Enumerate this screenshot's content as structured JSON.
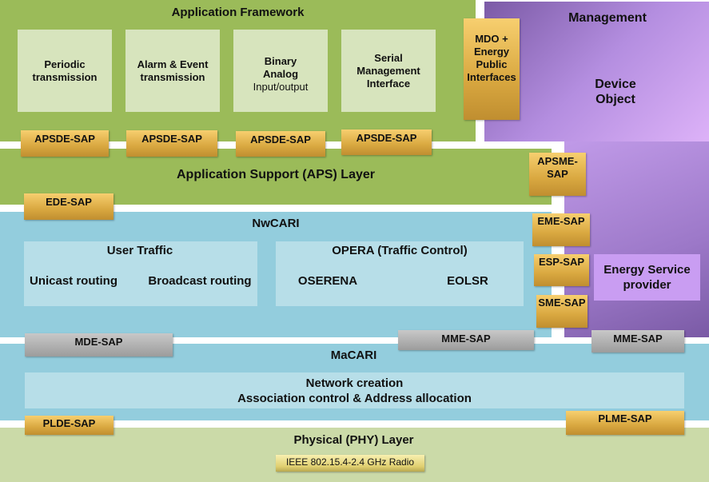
{
  "app_framework": {
    "title": "Application Framework",
    "modules": [
      {
        "lines": [
          "Periodic",
          "transmission"
        ]
      },
      {
        "lines": [
          "Alarm & Event",
          "transmission"
        ]
      },
      {
        "lines": [
          "Binary",
          "Analog"
        ],
        "sub": "Input/output"
      },
      {
        "lines": [
          "Serial",
          "Management",
          "Interface"
        ]
      }
    ],
    "sap": "APSDE-SAP"
  },
  "mdo": [
    "MDO +",
    "Energy",
    "Public",
    "Interfaces"
  ],
  "management": {
    "title": "Management",
    "device_object": [
      "Device",
      "Object"
    ],
    "energy_service": [
      "Energy Service",
      "provider"
    ]
  },
  "aps": {
    "title": "Application Support (APS) Layer",
    "ede_sap": "EDE-SAP",
    "apsme_sap": [
      "APSME-",
      "SAP"
    ]
  },
  "nwcari": {
    "title": "NwCARI",
    "user_traffic": {
      "title": "User Traffic",
      "items": [
        "Unicast routing",
        "Broadcast routing"
      ]
    },
    "opera": {
      "title": "OPERA (Traffic Control)",
      "items": [
        "OSERENA",
        "EOLSR"
      ]
    },
    "eme_sap": "EME-SAP",
    "esp_sap": "ESP-SAP",
    "sme_sap": "SME-SAP",
    "mde_sap": "MDE-SAP",
    "mme_sap": "MME-SAP"
  },
  "mme_sap_mgmt": "MME-SAP",
  "macari": {
    "title": "MaCARI",
    "lines": [
      "Network creation",
      "Association control & Address allocation"
    ],
    "plde_sap": "PLDE-SAP",
    "plme_sap": "PLME-SAP"
  },
  "phy": {
    "title": "Physical (PHY) Layer",
    "radio": "IEEE 802.15.4-2.4 GHz Radio"
  },
  "colors": {
    "green": "#9bbb59",
    "blue": "#93cddd",
    "purple": "#a77fd6",
    "gold": "#e0b050",
    "gray": "#b0b0b0"
  }
}
